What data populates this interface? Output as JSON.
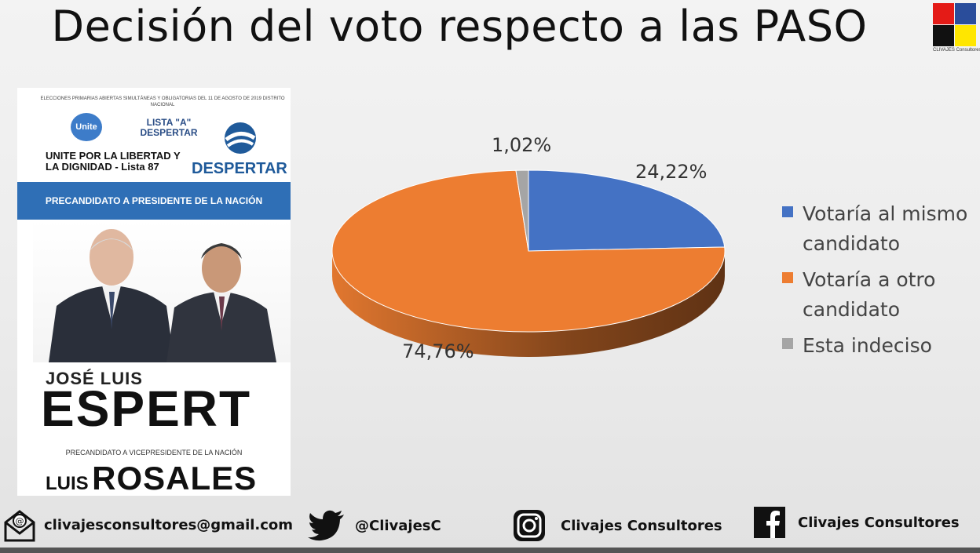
{
  "slide": {
    "title": "Decisión del voto respecto a las PASO",
    "logo_text": "CLIVAJES Consultores",
    "logo_colors": [
      "#e41b17",
      "#2a4d9b",
      "#111111",
      "#ffe600"
    ]
  },
  "poster": {
    "header": "ELECCIONES PRIMARIAS ABIERTAS SIMULTÁNEAS Y OBLIGATORIAS DEL 11 DE AGOSTO DE 2019 DISTRITO NACIONAL",
    "unite_badge": "Unite",
    "lista": "LISTA \"A\" DESPERTAR",
    "party": "UNITE POR LA LIBERTAD Y LA DIGNIDAD - Lista 87",
    "despertar": "DESPERTAR",
    "band": "PRECANDIDATO A PRESIDENTE DE LA NACIÓN",
    "candidate_first": "JOSÉ LUIS",
    "candidate_last": "ESPERT",
    "vice_label": "PRECANDIDATO A VICEPRESIDENTE DE LA NACIÓN",
    "vice_first": "LUIS",
    "vice_last": "ROSALES"
  },
  "chart_data": {
    "type": "pie",
    "title": "",
    "categories": [
      "Votaría al mismo candidato",
      "Votaría a otro candidato",
      "Esta indeciso"
    ],
    "values": [
      24.22,
      74.76,
      1.02
    ],
    "labels": [
      "24,22%",
      "74,76%",
      "1,02%"
    ],
    "colors": [
      "#4472c4",
      "#ed7d31",
      "#a5a5a5"
    ],
    "legend_position": "right",
    "style": "3d"
  },
  "footer": {
    "email": "clivajesconsultores@gmail.com",
    "twitter": "@ClivajesC",
    "instagram": "Clivajes Consultores",
    "facebook": "Clivajes Consultores"
  }
}
